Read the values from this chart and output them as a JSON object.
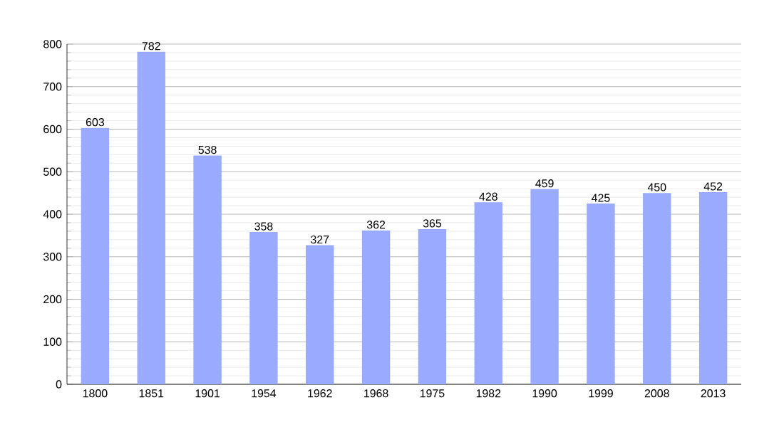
{
  "chart_data": {
    "type": "bar",
    "categories": [
      "1800",
      "1851",
      "1901",
      "1954",
      "1962",
      "1968",
      "1975",
      "1982",
      "1990",
      "1999",
      "2008",
      "2013"
    ],
    "values": [
      603,
      782,
      538,
      358,
      327,
      362,
      365,
      428,
      459,
      425,
      450,
      452
    ],
    "color": "#99aaff",
    "ylim": [
      0,
      800
    ],
    "yticks": [
      0,
      100,
      200,
      300,
      400,
      500,
      600,
      700,
      800
    ],
    "grid": "y",
    "data_labels": true
  }
}
